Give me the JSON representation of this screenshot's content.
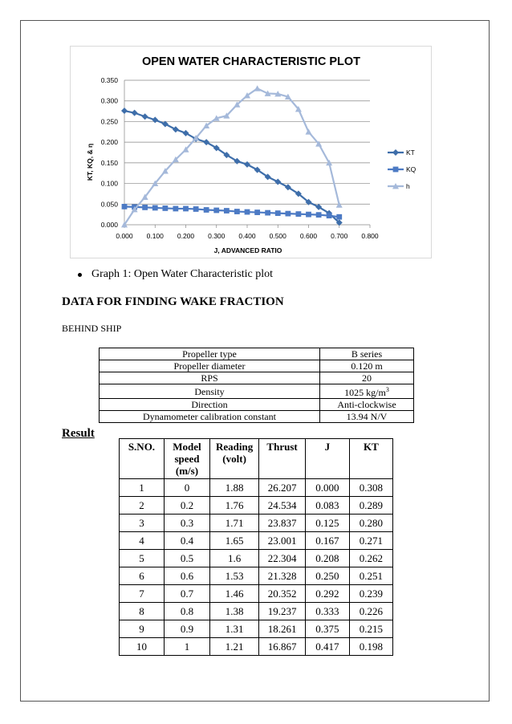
{
  "caption": "Graph 1: Open Water Characteristic plot",
  "section_title": "DATA FOR FINDING WAKE FRACTION",
  "sub_title": "BEHIND SHIP",
  "info_table": [
    {
      "property": "Propeller type",
      "value": "B series"
    },
    {
      "property": "Propeller diameter",
      "value": "0.120 m"
    },
    {
      "property": "RPS",
      "value": "20"
    },
    {
      "property": "Density",
      "value": "1025 kg/m",
      "sup": "3"
    },
    {
      "property": "Direction",
      "value": "Anti-clockwise"
    },
    {
      "property": "Dynamometer calibration constant",
      "value": "13.94 N/V"
    }
  ],
  "result_title": "Result",
  "result_table": {
    "headers": [
      "S.NO.",
      "Model speed (m/s)",
      "Reading (volt)",
      "Thrust",
      "J",
      "KT"
    ],
    "rows": [
      [
        "1",
        "0",
        "1.88",
        "26.207",
        "0.000",
        "0.308"
      ],
      [
        "2",
        "0.2",
        "1.76",
        "24.534",
        "0.083",
        "0.289"
      ],
      [
        "3",
        "0.3",
        "1.71",
        "23.837",
        "0.125",
        "0.280"
      ],
      [
        "4",
        "0.4",
        "1.65",
        "23.001",
        "0.167",
        "0.271"
      ],
      [
        "5",
        "0.5",
        "1.6",
        "22.304",
        "0.208",
        "0.262"
      ],
      [
        "6",
        "0.6",
        "1.53",
        "21.328",
        "0.250",
        "0.251"
      ],
      [
        "7",
        "0.7",
        "1.46",
        "20.352",
        "0.292",
        "0.239"
      ],
      [
        "8",
        "0.8",
        "1.38",
        "19.237",
        "0.333",
        "0.226"
      ],
      [
        "9",
        "0.9",
        "1.31",
        "18.261",
        "0.375",
        "0.215"
      ],
      [
        "10",
        "1",
        "1.21",
        "16.867",
        "0.417",
        "0.198"
      ]
    ]
  },
  "chart_data": {
    "type": "line",
    "title": "OPEN WATER CHARACTERISTIC PLOT",
    "xlabel": "J, ADVANCED RATIO",
    "ylabel": "KT, KQ, & η",
    "xlim": [
      0,
      0.8
    ],
    "ylim": [
      0,
      0.35
    ],
    "xticks": [
      "0.000",
      "0.100",
      "0.200",
      "0.300",
      "0.400",
      "0.500",
      "0.600",
      "0.700",
      "0.800"
    ],
    "yticks": [
      "0.000",
      "0.050",
      "0.100",
      "0.150",
      "0.200",
      "0.250",
      "0.300",
      "0.350"
    ],
    "grid": true,
    "legend": "right",
    "series": [
      {
        "name": "KT",
        "color": "#3e6eaa",
        "marker": "diamond",
        "x": [
          0.0,
          0.033,
          0.067,
          0.1,
          0.133,
          0.167,
          0.2,
          0.233,
          0.267,
          0.3,
          0.333,
          0.367,
          0.4,
          0.433,
          0.467,
          0.5,
          0.533,
          0.567,
          0.6,
          0.633,
          0.667,
          0.7
        ],
        "y": [
          0.276,
          0.271,
          0.262,
          0.254,
          0.244,
          0.231,
          0.222,
          0.208,
          0.2,
          0.186,
          0.169,
          0.154,
          0.146,
          0.133,
          0.116,
          0.104,
          0.091,
          0.075,
          0.055,
          0.043,
          0.028,
          0.005
        ]
      },
      {
        "name": "KQ",
        "color": "#4c7ac4",
        "marker": "square",
        "x": [
          0.0,
          0.033,
          0.067,
          0.1,
          0.133,
          0.167,
          0.2,
          0.233,
          0.267,
          0.3,
          0.333,
          0.367,
          0.4,
          0.433,
          0.467,
          0.5,
          0.533,
          0.567,
          0.6,
          0.633,
          0.667,
          0.7
        ],
        "y": [
          0.044,
          0.043,
          0.042,
          0.041,
          0.04,
          0.039,
          0.039,
          0.038,
          0.036,
          0.035,
          0.034,
          0.032,
          0.031,
          0.03,
          0.029,
          0.028,
          0.027,
          0.026,
          0.025,
          0.024,
          0.022,
          0.019
        ]
      },
      {
        "name": "h",
        "color": "#a5b9da",
        "marker": "triangle",
        "x": [
          0.0,
          0.033,
          0.067,
          0.1,
          0.133,
          0.167,
          0.2,
          0.233,
          0.267,
          0.3,
          0.333,
          0.367,
          0.4,
          0.433,
          0.467,
          0.5,
          0.533,
          0.567,
          0.6,
          0.633,
          0.667,
          0.7
        ],
        "y": [
          0.0,
          0.037,
          0.067,
          0.1,
          0.13,
          0.158,
          0.182,
          0.21,
          0.24,
          0.258,
          0.264,
          0.291,
          0.313,
          0.33,
          0.318,
          0.317,
          0.31,
          0.28,
          0.225,
          0.196,
          0.15,
          0.048
        ]
      }
    ]
  }
}
